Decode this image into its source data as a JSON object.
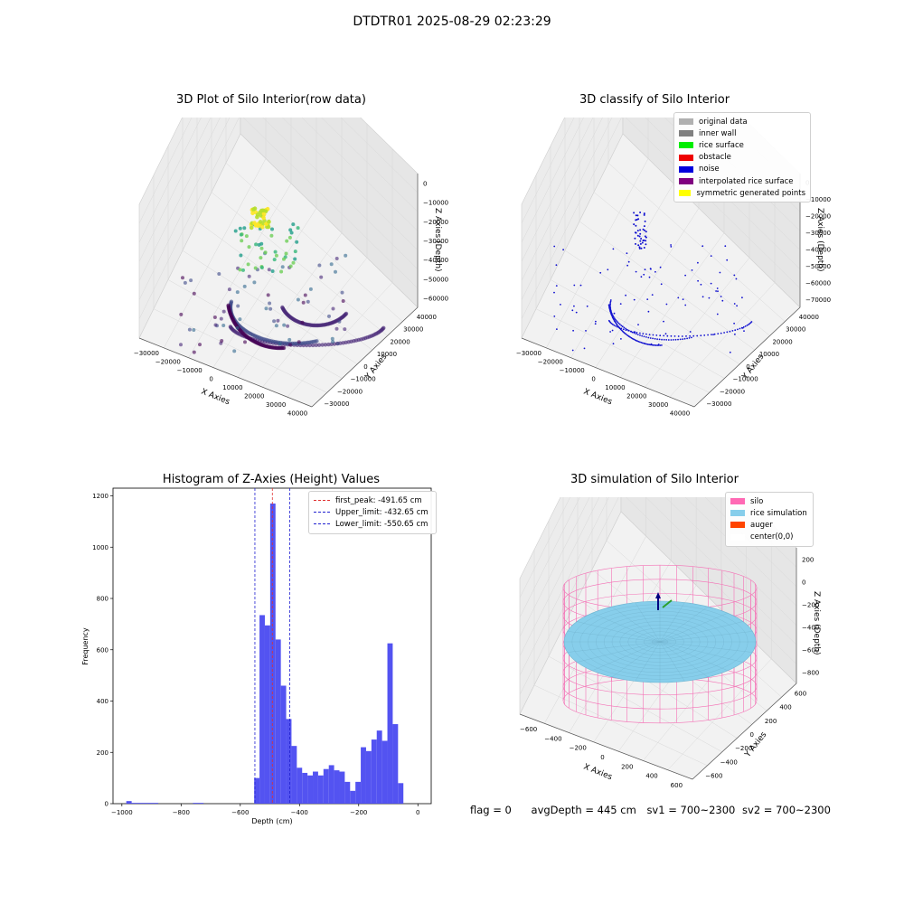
{
  "suptitle": "DTDTR01 2025-08-29 02:23:29",
  "footer": {
    "flag": "flag = 0",
    "avg_depth": "avgDepth = 445 cm",
    "sv1": "sv1 = 700~2300",
    "sv2": "sv2 = 700~2300"
  },
  "colors": {
    "hist_bar": "#4a4af0",
    "first_peak": "#e03030",
    "limits": "#2020d0",
    "silo_wire": "#f472b6",
    "rice": "#87ceeb",
    "noise_dot": "#1010d0"
  },
  "chart_data": [
    {
      "type": "scatter",
      "subtype": "3d",
      "title": "3D Plot of Silo Interior(row data)",
      "xlabel": "X Axies",
      "ylabel": "Y Axies",
      "zlabel": "Z Axies (Depth)",
      "x_ticks": [
        "−30000",
        "−20000",
        "−10000",
        "0",
        "10000",
        "20000",
        "30000",
        "40000"
      ],
      "y_ticks": [
        "−30000",
        "−20000",
        "−10000",
        "0",
        "10000",
        "20000",
        "30000",
        "40000"
      ],
      "z_ticks": [
        "0",
        "−10000",
        "−20000",
        "−30000",
        "−40000",
        "−50000",
        "−60000"
      ],
      "colormap": "viridis",
      "grid": true
    },
    {
      "type": "scatter",
      "subtype": "3d",
      "title": "3D classify of Silo Interior",
      "xlabel": "X Axies",
      "ylabel": "Y Axies",
      "zlabel": "Z Axies (Depth)",
      "x_ticks": [
        "−30000",
        "−20000",
        "−10000",
        "0",
        "10000",
        "20000",
        "30000",
        "40000"
      ],
      "y_ticks": [
        "−30000",
        "−20000",
        "−10000",
        "0",
        "10000",
        "20000",
        "30000",
        "40000"
      ],
      "z_ticks": [
        "0",
        "−10000",
        "−20000",
        "−30000",
        "−40000",
        "−50000",
        "−60000",
        "−70000"
      ],
      "legend": [
        {
          "label": "original data",
          "color": "#b0b0b0"
        },
        {
          "label": "inner wall",
          "color": "#808080"
        },
        {
          "label": "rice surface",
          "color": "#00ee00"
        },
        {
          "label": "obstacle",
          "color": "#ee0000"
        },
        {
          "label": "noise",
          "color": "#0000dd"
        },
        {
          "label": "interpolated rice surface",
          "color": "#800080"
        },
        {
          "label": "symmetric generated points",
          "color": "#ffff00"
        }
      ],
      "legend_position": "top-right",
      "grid": true
    },
    {
      "type": "bar",
      "subtype": "histogram",
      "title": "Histogram of Z-Axies (Height) Values",
      "xlabel": "Depth (cm)",
      "ylabel": "Frequency",
      "xlim": [
        -1000,
        0
      ],
      "ylim": [
        0,
        1230
      ],
      "x_ticks": [
        -1000,
        -800,
        -600,
        -400,
        -200,
        0
      ],
      "y_ticks": [
        0,
        200,
        400,
        600,
        800,
        1000,
        1200
      ],
      "bin_width": 18,
      "bins": [
        [
          -985,
          10
        ],
        [
          -967,
          3
        ],
        [
          -949,
          3
        ],
        [
          -931,
          3
        ],
        [
          -913,
          3
        ],
        [
          -895,
          3
        ],
        [
          -760,
          3
        ],
        [
          -742,
          3
        ],
        [
          -553,
          100
        ],
        [
          -535,
          735
        ],
        [
          -517,
          695
        ],
        [
          -499,
          1170
        ],
        [
          -481,
          640
        ],
        [
          -463,
          460
        ],
        [
          -445,
          330
        ],
        [
          -427,
          225
        ],
        [
          -409,
          140
        ],
        [
          -391,
          120
        ],
        [
          -373,
          110
        ],
        [
          -355,
          125
        ],
        [
          -337,
          110
        ],
        [
          -319,
          135
        ],
        [
          -301,
          150
        ],
        [
          -283,
          130
        ],
        [
          -265,
          125
        ],
        [
          -247,
          85
        ],
        [
          -229,
          50
        ],
        [
          -211,
          85
        ],
        [
          -193,
          220
        ],
        [
          -175,
          205
        ],
        [
          -157,
          250
        ],
        [
          -139,
          285
        ],
        [
          -121,
          245
        ],
        [
          -103,
          625
        ],
        [
          -85,
          310
        ],
        [
          -67,
          80
        ]
      ],
      "lines": [
        {
          "label": "first_peak: -491.65 cm",
          "x": -491.65,
          "color": "#e03030"
        },
        {
          "label": "Upper_limit: -432.65 cm",
          "x": -432.65,
          "color": "#2020d0"
        },
        {
          "label": "Lower_limit: -550.65 cm",
          "x": -550.65,
          "color": "#2020d0"
        }
      ],
      "legend_position": "top-right",
      "grid": false
    },
    {
      "type": "area",
      "subtype": "3d-surface",
      "title": "3D simulation of Silo Interior",
      "xlabel": "X Axies",
      "ylabel": "Y Axies",
      "zlabel": "Z Axies (Depth)",
      "x_ticks": [
        "−600",
        "−400",
        "−200",
        "0",
        "200",
        "400",
        "600"
      ],
      "y_ticks": [
        "−600",
        "−400",
        "−200",
        "0",
        "200",
        "400",
        "600"
      ],
      "z_ticks": [
        "200",
        "0",
        "−200",
        "−400",
        "−600",
        "−800"
      ],
      "legend": [
        {
          "label": "silo",
          "color": "#ff69b4"
        },
        {
          "label": "rice simulation",
          "color": "#87ceeb"
        },
        {
          "label": "auger",
          "color": "#ff4500"
        },
        {
          "label": "center(0,0)",
          "color": "#ffffff"
        }
      ],
      "legend_position": "top-right",
      "grid": true
    }
  ]
}
